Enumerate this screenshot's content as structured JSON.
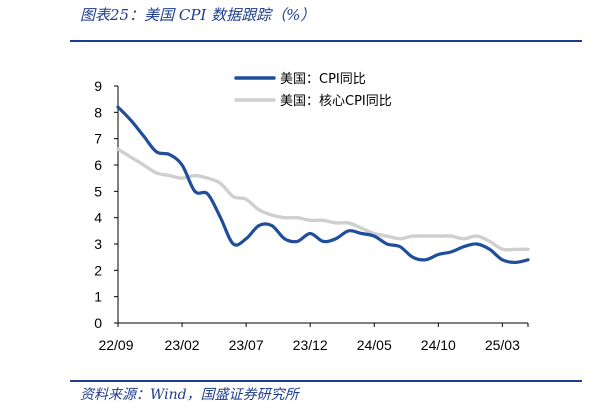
{
  "header": {
    "title": "图表25：美国 CPI 数据跟踪（%）"
  },
  "footer": {
    "source": "资料来源：Wind，国盛证券研究所"
  },
  "chart_data": {
    "type": "line",
    "title": "图表25：美国 CPI 数据跟踪（%）",
    "xlabel": "",
    "ylabel": "",
    "ylim": [
      0,
      9
    ],
    "y_ticks": [
      "0",
      "1",
      "2",
      "3",
      "4",
      "5",
      "6",
      "7",
      "8",
      "9"
    ],
    "x_tick_labels": [
      "22/09",
      "23/02",
      "23/07",
      "23/12",
      "24/05",
      "24/10",
      "25/03"
    ],
    "x": [
      "22/09",
      "22/10",
      "22/11",
      "22/12",
      "23/01",
      "23/02",
      "23/03",
      "23/04",
      "23/05",
      "23/06",
      "23/07",
      "23/08",
      "23/09",
      "23/10",
      "23/11",
      "23/12",
      "24/01",
      "24/02",
      "24/03",
      "24/04",
      "24/05",
      "24/06",
      "24/07",
      "24/08",
      "24/09",
      "24/10",
      "24/11",
      "24/12",
      "25/01",
      "25/02",
      "25/03",
      "25/04",
      "25/05"
    ],
    "grid": false,
    "legend_position": "top",
    "series": [
      {
        "name": "美国：CPI同比",
        "color": "#1f4e9b",
        "values": [
          8.2,
          7.7,
          7.1,
          6.5,
          6.4,
          6.0,
          5.0,
          4.9,
          4.0,
          3.0,
          3.2,
          3.7,
          3.7,
          3.2,
          3.1,
          3.4,
          3.1,
          3.2,
          3.5,
          3.4,
          3.3,
          3.0,
          2.9,
          2.5,
          2.4,
          2.6,
          2.7,
          2.9,
          3.0,
          2.8,
          2.4,
          2.3,
          2.4
        ]
      },
      {
        "name": "美国：核心CPI同比",
        "color": "#cfcfcf",
        "values": [
          6.6,
          6.3,
          6.0,
          5.7,
          5.6,
          5.5,
          5.6,
          5.5,
          5.3,
          4.8,
          4.7,
          4.3,
          4.1,
          4.0,
          4.0,
          3.9,
          3.9,
          3.8,
          3.8,
          3.6,
          3.4,
          3.3,
          3.2,
          3.3,
          3.3,
          3.3,
          3.3,
          3.2,
          3.3,
          3.1,
          2.8,
          2.8,
          2.8
        ]
      }
    ]
  }
}
